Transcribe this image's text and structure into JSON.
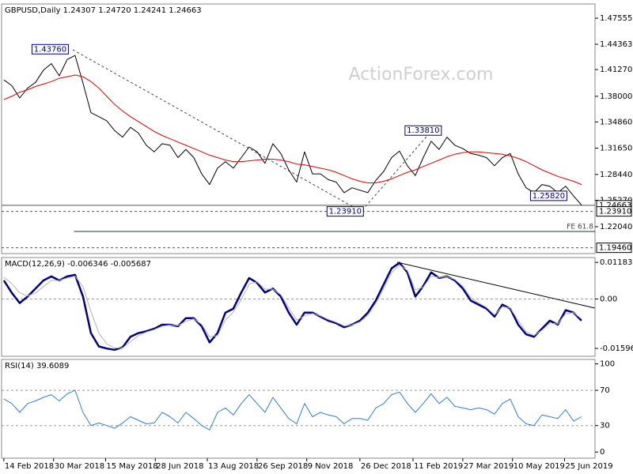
{
  "chart_data": [
    {
      "type": "line",
      "title": "GBPUSD,Daily 1.24307 1.24720 1.24241 1.24663",
      "watermark": "ActionForex.com",
      "x": [
        "2018-02-14",
        "2018-02-21",
        "2018-02-28",
        "2018-03-07",
        "2018-03-14",
        "2018-03-21",
        "2018-03-28",
        "2018-04-04",
        "2018-04-11",
        "2018-04-18",
        "2018-04-25",
        "2018-05-02",
        "2018-05-09",
        "2018-05-16",
        "2018-05-23",
        "2018-05-30",
        "2018-06-06",
        "2018-06-13",
        "2018-06-20",
        "2018-06-27",
        "2018-07-04",
        "2018-07-11",
        "2018-07-18",
        "2018-07-25",
        "2018-08-01",
        "2018-08-08",
        "2018-08-15",
        "2018-08-22",
        "2018-08-29",
        "2018-09-05",
        "2018-09-12",
        "2018-09-19",
        "2018-09-26",
        "2018-10-03",
        "2018-10-10",
        "2018-10-17",
        "2018-10-24",
        "2018-10-31",
        "2018-11-07",
        "2018-11-14",
        "2018-11-21",
        "2018-11-28",
        "2018-12-05",
        "2018-12-12",
        "2018-12-19",
        "2018-12-26",
        "2019-01-02",
        "2019-01-09",
        "2019-01-16",
        "2019-01-23",
        "2019-01-30",
        "2019-02-06",
        "2019-02-13",
        "2019-02-20",
        "2019-02-27",
        "2019-03-06",
        "2019-03-13",
        "2019-03-20",
        "2019-03-27",
        "2019-04-03",
        "2019-04-10",
        "2019-04-17",
        "2019-04-24",
        "2019-05-01",
        "2019-05-08",
        "2019-05-15",
        "2019-05-22",
        "2019-05-29",
        "2019-06-05",
        "2019-06-12",
        "2019-06-19",
        "2019-06-26",
        "2019-07-03",
        "2019-07-10"
      ],
      "xlim": [
        "2018-02-12",
        "2019-07-22"
      ],
      "xticks": [
        {
          "value": "2018-02-14",
          "label": "14 Feb 2018"
        },
        {
          "value": "2018-03-30",
          "label": "30 Mar 2018"
        },
        {
          "value": "2018-05-15",
          "label": "15 May 2018"
        },
        {
          "value": "2018-06-28",
          "label": "28 Jun 2018"
        },
        {
          "value": "2018-08-13",
          "label": "13 Aug 2018"
        },
        {
          "value": "2018-09-26",
          "label": "26 Sep 2018"
        },
        {
          "value": "2018-11-09",
          "label": "9 Nov 2018"
        },
        {
          "value": "2018-12-26",
          "label": "26 Dec 2018"
        },
        {
          "value": "2019-02-11",
          "label": "11 Feb 2019"
        },
        {
          "value": "2019-03-27",
          "label": "27 Mar 2019"
        },
        {
          "value": "2019-05-10",
          "label": "10 May 2019"
        },
        {
          "value": "2019-06-25",
          "label": "25 Jun 2019"
        }
      ],
      "series": [
        {
          "color": "#000000",
          "values": [
            1.4,
            1.393,
            1.378,
            1.39,
            1.397,
            1.412,
            1.42,
            1.405,
            1.425,
            1.43,
            1.396,
            1.36,
            1.355,
            1.35,
            1.338,
            1.33,
            1.342,
            1.335,
            1.32,
            1.312,
            1.322,
            1.32,
            1.305,
            1.315,
            1.305,
            1.285,
            1.272,
            1.292,
            1.3,
            1.292,
            1.305,
            1.318,
            1.312,
            1.298,
            1.322,
            1.31,
            1.29,
            1.275,
            1.312,
            1.285,
            1.285,
            1.278,
            1.275,
            1.262,
            1.268,
            1.265,
            1.262,
            1.277,
            1.288,
            1.305,
            1.313,
            1.295,
            1.283,
            1.305,
            1.325,
            1.315,
            1.33,
            1.32,
            1.316,
            1.31,
            1.308,
            1.305,
            1.295,
            1.305,
            1.31,
            1.285,
            1.268,
            1.262,
            1.272,
            1.27,
            1.262,
            1.27,
            1.258,
            1.247
          ]
        },
        {
          "color": "#e00000",
          "values": [
            1.376,
            1.38,
            1.385,
            1.388,
            1.392,
            1.395,
            1.398,
            1.402,
            1.404,
            1.406,
            1.404,
            1.398,
            1.39,
            1.38,
            1.37,
            1.362,
            1.355,
            1.349,
            1.343,
            1.337,
            1.332,
            1.328,
            1.324,
            1.32,
            1.316,
            1.312,
            1.308,
            1.305,
            1.302,
            1.3,
            1.3,
            1.301,
            1.302,
            1.303,
            1.303,
            1.302,
            1.3,
            1.297,
            1.296,
            1.294,
            1.292,
            1.29,
            1.287,
            1.283,
            1.279,
            1.276,
            1.274,
            1.274,
            1.276,
            1.279,
            1.283,
            1.287,
            1.29,
            1.294,
            1.298,
            1.302,
            1.306,
            1.309,
            1.311,
            1.312,
            1.312,
            1.311,
            1.31,
            1.309,
            1.307,
            1.304,
            1.3,
            1.295,
            1.29,
            1.286,
            1.282,
            1.279,
            1.276,
            1.272
          ]
        }
      ],
      "ylim": [
        1.1875,
        1.493
      ],
      "yticks": [
        1.47555,
        1.44363,
        {
          "value": 1.4127,
          "label": "1.41270"
        },
        {
          "value": 1.38,
          "label": "1.38000"
        },
        {
          "value": 1.3486,
          "label": "1.34860"
        },
        {
          "value": 1.3165,
          "label": "1.31650"
        },
        {
          "value": 1.2844,
          "label": "1.28440"
        },
        {
          "value": 1.2527,
          "label": "1.25270"
        },
        {
          "value": 1.2204,
          "label": "1.22040"
        }
      ],
      "levels": [
        {
          "value": 1.24663,
          "line": "solid"
        },
        {
          "value": 1.2391,
          "label": "1.23910",
          "line": "dashed"
        },
        {
          "value": 1.1946,
          "label": "1.19460",
          "line": "dashed"
        }
      ],
      "fe": {
        "label": "FE 61.8",
        "value": 1.2146,
        "from": "2018-04-17"
      },
      "annotations": [
        {
          "value": 1.4376,
          "label": "1.43760",
          "x": "2018-04-17"
        },
        {
          "value": 1.3381,
          "label": "1.33810",
          "x": "2019-03-13"
        },
        {
          "value": 1.2391,
          "label": "1.23910",
          "x": "2019-01-03"
        },
        {
          "value": 1.2582,
          "label": "1.25820",
          "x": "2019-07-02"
        }
      ]
    },
    {
      "type": "line",
      "title": "MACD(12,26,9) -0.006346 -0.005687",
      "series": [
        {
          "color": "#000080",
          "values": [
            0.006,
            0.002,
            -0.0013,
            0.0008,
            0.0034,
            0.006,
            0.0073,
            0.006,
            0.0073,
            0.0078,
            0.0008,
            -0.011,
            -0.0153,
            -0.016,
            -0.0164,
            -0.0156,
            -0.0122,
            -0.011,
            -0.0104,
            -0.0096,
            -0.0083,
            -0.0083,
            -0.0088,
            -0.0062,
            -0.0062,
            -0.0088,
            -0.014,
            -0.011,
            -0.0044,
            -0.0031,
            0.0021,
            0.0068,
            0.0052,
            0.0021,
            0.0034,
            0.0008,
            -0.0044,
            -0.0083,
            -0.0044,
            -0.0044,
            -0.0057,
            -0.007,
            -0.0078,
            -0.0091,
            -0.0083,
            -0.007,
            -0.0044,
            -0.0005,
            0.0047,
            0.0099,
            0.0117,
            0.0086,
            0.0008,
            0.0042,
            0.0086,
            0.0068,
            0.0073,
            0.006,
            0.0034,
            -0.0005,
            -0.0018,
            -0.0031,
            -0.0057,
            -0.0018,
            -0.0031,
            -0.0083,
            -0.0114,
            -0.0122,
            -0.0096,
            -0.007,
            -0.0083,
            -0.0036,
            -0.0044,
            -0.007
          ]
        },
        {
          "color": "#b4b4b4",
          "values": [
            0.007,
            0.005,
            0.002,
            0.001,
            0.002,
            0.004,
            0.006,
            0.006,
            0.0068,
            0.0074,
            0.004,
            -0.004,
            -0.011,
            -0.0145,
            -0.0158,
            -0.0158,
            -0.0138,
            -0.0118,
            -0.0107,
            -0.0099,
            -0.0088,
            -0.0084,
            -0.0086,
            -0.0072,
            -0.0064,
            -0.0082,
            -0.0122,
            -0.0118,
            -0.0068,
            -0.0042,
            -0.0002,
            0.0048,
            0.0056,
            0.0032,
            0.0032,
            0.0014,
            -0.0028,
            -0.0068,
            -0.0054,
            -0.0047,
            -0.0054,
            -0.0066,
            -0.0075,
            -0.0087,
            -0.0084,
            -0.0074,
            -0.0052,
            -0.0014,
            0.0034,
            0.0085,
            0.011,
            0.0092,
            0.003,
            0.0038,
            0.0074,
            0.007,
            0.0072,
            0.0063,
            0.0041,
            0.0005,
            -0.0013,
            -0.0027,
            -0.0051,
            -0.0025,
            -0.0029,
            -0.007,
            -0.0105,
            -0.0118,
            -0.0101,
            -0.0077,
            -0.0081,
            -0.0047,
            -0.0044,
            -0.0064
          ]
        }
      ],
      "ylim": [
        -0.0185,
        0.0134
      ],
      "yticks": [
        0.011831,
        {
          "value": 0,
          "label": "0.00"
        },
        -0.01596
      ],
      "levels": [
        0
      ]
    },
    {
      "type": "line",
      "title": "RSI(14) 39.6089",
      "series": [
        {
          "color": "#2f7ed8",
          "values": [
            60,
            55,
            45,
            55,
            58,
            62,
            65,
            58,
            66,
            70,
            45,
            30,
            33,
            30,
            27,
            33,
            40,
            36,
            32,
            33,
            45,
            40,
            33,
            45,
            38,
            30,
            25,
            45,
            50,
            42,
            55,
            65,
            55,
            45,
            62,
            50,
            38,
            32,
            55,
            40,
            45,
            42,
            40,
            32,
            38,
            38,
            36,
            50,
            55,
            65,
            68,
            55,
            45,
            55,
            66,
            55,
            62,
            52,
            50,
            48,
            50,
            48,
            43,
            55,
            60,
            40,
            32,
            30,
            42,
            40,
            38,
            48,
            35,
            40
          ]
        }
      ],
      "ylim": [
        -7,
        105
      ],
      "yticks": [
        100,
        70,
        30,
        0
      ],
      "levels": [
        70,
        30
      ]
    }
  ]
}
